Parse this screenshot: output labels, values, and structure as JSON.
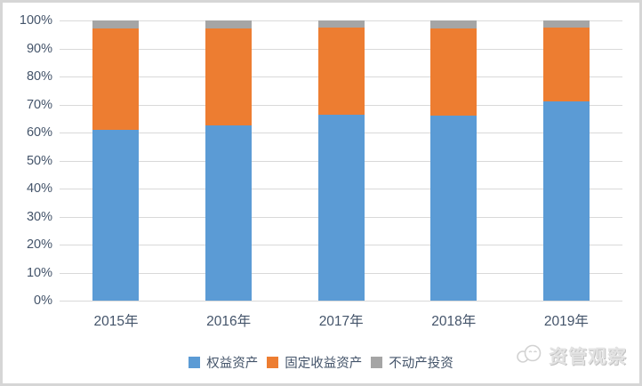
{
  "watermark": {
    "text": "资管观察"
  },
  "colors": {
    "background": "#FFFFFF",
    "frame_border": "#D6D6D6",
    "gridline": "#D9D9D9",
    "axis_text": "#44546A",
    "series_blue": "#5B9BD5",
    "series_orange": "#ED7D31",
    "series_gray": "#A5A5A5",
    "watermark_gray": "#DDDDDD"
  },
  "chart_data": {
    "type": "bar",
    "subtype": "stacked-100-percent-column",
    "title": "",
    "xlabel": "",
    "ylabel": "",
    "ylim": [
      0,
      100
    ],
    "grid": true,
    "legend_position": "bottom",
    "categories": [
      "2015年",
      "2016年",
      "2017年",
      "2018年",
      "2019年"
    ],
    "y_ticks": [
      "0%",
      "10%",
      "20%",
      "30%",
      "40%",
      "50%",
      "60%",
      "70%",
      "80%",
      "90%",
      "100%"
    ],
    "series": [
      {
        "name": "权益资产",
        "color": "#5B9BD5",
        "values": [
          61,
          62.5,
          66.5,
          66,
          71
        ]
      },
      {
        "name": "固定收益资产",
        "color": "#ED7D31",
        "values": [
          36,
          34.5,
          31,
          31,
          26.5
        ]
      },
      {
        "name": "不动产投资",
        "color": "#A5A5A5",
        "values": [
          3,
          3,
          2.5,
          3,
          2.5
        ]
      }
    ]
  }
}
